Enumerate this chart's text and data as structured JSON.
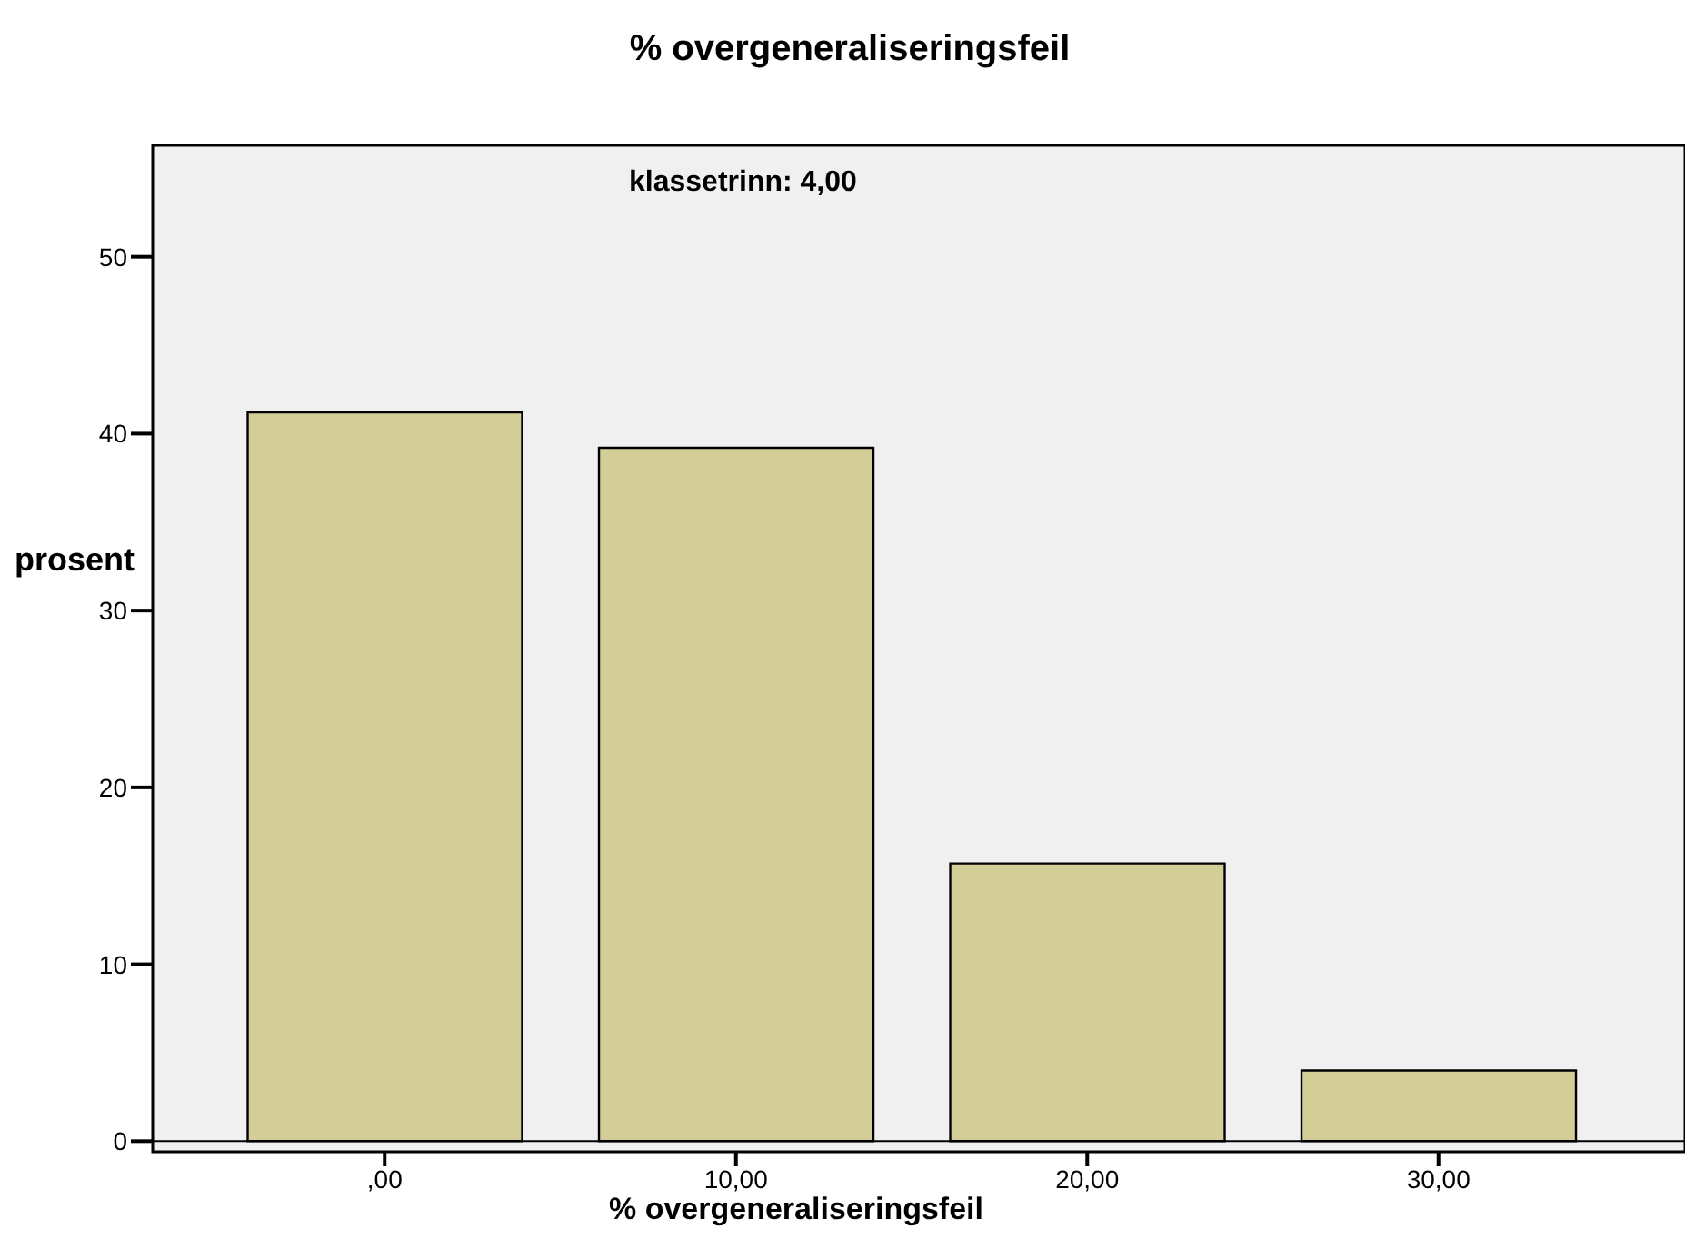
{
  "chart_data": {
    "type": "bar",
    "title": "% overgeneraliseringsfeil",
    "xlabel": "% overgeneraliseringsfeil",
    "ylabel": "prosent",
    "annotations": [
      "klassetrinn: 4,00"
    ],
    "categories": [
      ",00",
      "10,00",
      "20,00",
      "30,00"
    ],
    "values": [
      41.2,
      39.2,
      15.7,
      4.0
    ],
    "color": "#d3cd98",
    "ylim": [
      -0.6,
      56.3
    ],
    "yticks": [
      0,
      10,
      20,
      30,
      40,
      50
    ],
    "ref_lines": [
      {
        "axis": "y",
        "value": 0,
        "label": null,
        "color": "#000000"
      }
    ],
    "legend": false
  }
}
